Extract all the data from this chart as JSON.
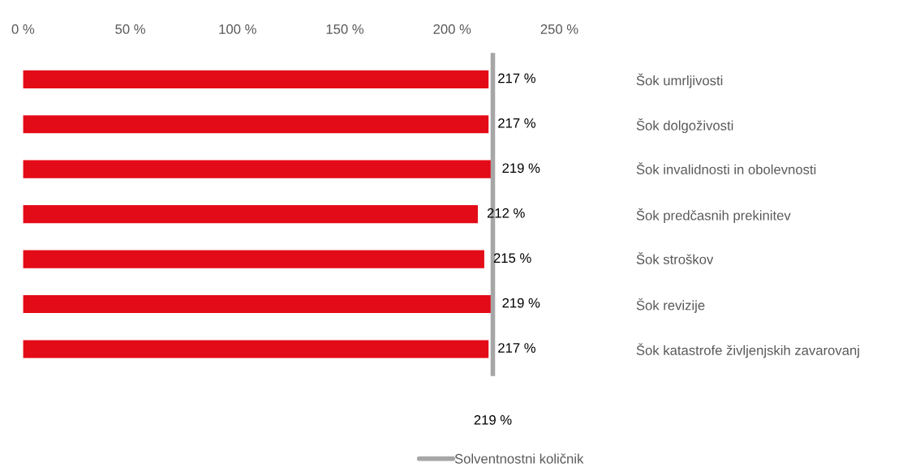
{
  "chart_data": {
    "type": "bar",
    "orientation": "horizontal",
    "categories": [
      "Šok umrljivosti",
      "Šok dolgoživosti",
      "Šok invalidnosti in obolevnosti",
      "Šok predčasnih prekinitev",
      "Šok stroškov",
      "Šok revizije",
      "Šok katastrofe življenjskih zavarovanj"
    ],
    "values": [
      217,
      217,
      219,
      212,
      215,
      219,
      217
    ],
    "value_labels": [
      "217 %",
      "217 %",
      "219 %",
      "212 %",
      "215 %",
      "219 %",
      "217 %"
    ],
    "color": "#e30b17",
    "xlim": [
      0,
      250
    ],
    "xticks": [
      {
        "value": 0,
        "label": "0 %"
      },
      {
        "value": 50,
        "label": "50 %"
      },
      {
        "value": 100,
        "label": "100 %"
      },
      {
        "value": 150,
        "label": "150 %"
      },
      {
        "value": 200,
        "label": "200 %"
      },
      {
        "value": 250,
        "label": "250 %"
      }
    ],
    "ref_lines": [
      {
        "axis": "x",
        "value": 219,
        "label": "Solventnostni količnik",
        "color": "#a6a6a6"
      }
    ],
    "annotations": [
      "219 %"
    ],
    "legend": "bottom",
    "grid": false
  }
}
